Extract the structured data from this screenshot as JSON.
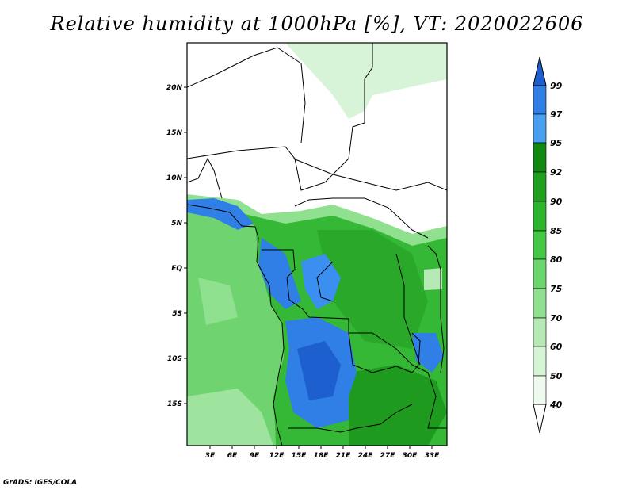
{
  "title": "Relative humidity at 1000hPa [%], VT: 2020022606",
  "credit": "GrADS: IGES/COLA",
  "map": {
    "lat_labels": [
      "20N",
      "15N",
      "10N",
      "5N",
      "EQ",
      "5S",
      "10S",
      "15S"
    ],
    "lon_labels": [
      "3E",
      "6E",
      "9E",
      "12E",
      "15E",
      "18E",
      "21E",
      "24E",
      "27E",
      "30E",
      "33E"
    ]
  },
  "colorbar": {
    "labels": [
      "99",
      "97",
      "95",
      "92",
      "90",
      "85",
      "80",
      "75",
      "70",
      "60",
      "50",
      "40"
    ],
    "colors": [
      "#1e5fcf",
      "#2f7fe6",
      "#4aa0f0",
      "#128a12",
      "#1fa01f",
      "#2db52d",
      "#45c845",
      "#6bd66b",
      "#8fe08f",
      "#b5eab5",
      "#d4f4d4",
      "#eefaee",
      "#ffffff"
    ]
  },
  "palette": {
    "coast": "#000000",
    "ocean": "#6fd46f",
    "land_dry": "#ffffff"
  }
}
